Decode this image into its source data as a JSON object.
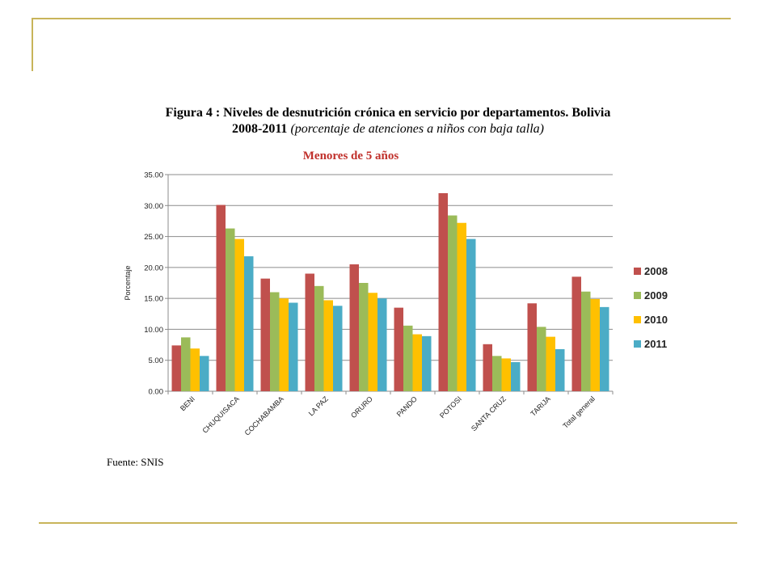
{
  "figure": {
    "title_line1": "Figura 4 : Niveles de desnutrición crónica en servicio por departamentos. Bolivia",
    "title_line2_bold": "2008-2011",
    "title_line2_italic": "(porcentaje de atenciones a niños con baja talla)",
    "source": "Fuente: SNIS"
  },
  "chart_data": {
    "type": "bar",
    "title": "Menores de 5 años",
    "xlabel": "",
    "ylabel": "Porcentaje",
    "ylim": [
      0,
      35
    ],
    "yticks": [
      "0.00",
      "5.00",
      "10.00",
      "15.00",
      "20.00",
      "25.00",
      "30.00",
      "35.00"
    ],
    "grid": true,
    "legend_position": "right",
    "categories": [
      "BENI",
      "CHUQUISACA",
      "COCHABAMBA",
      "LA PAZ",
      "ORURO",
      "PANDO",
      "POTOSI",
      "SANTA CRUZ",
      "TARIJA",
      "Total general"
    ],
    "series": [
      {
        "name": "2008",
        "color": "#c0504d",
        "values": [
          7.4,
          30.1,
          18.2,
          19.0,
          20.5,
          13.5,
          32.0,
          7.6,
          14.2,
          18.5
        ]
      },
      {
        "name": "2009",
        "color": "#9bbb59",
        "values": [
          8.7,
          26.3,
          16.0,
          17.0,
          17.5,
          10.6,
          28.4,
          5.7,
          10.4,
          16.1
        ]
      },
      {
        "name": "2010",
        "color": "#ffc000",
        "values": [
          6.9,
          24.6,
          15.0,
          14.7,
          15.9,
          9.2,
          27.2,
          5.3,
          8.8,
          14.9
        ]
      },
      {
        "name": "2011",
        "color": "#4bacc6",
        "values": [
          5.7,
          21.8,
          14.3,
          13.8,
          15.0,
          8.9,
          24.6,
          4.7,
          6.8,
          13.6
        ]
      }
    ]
  }
}
